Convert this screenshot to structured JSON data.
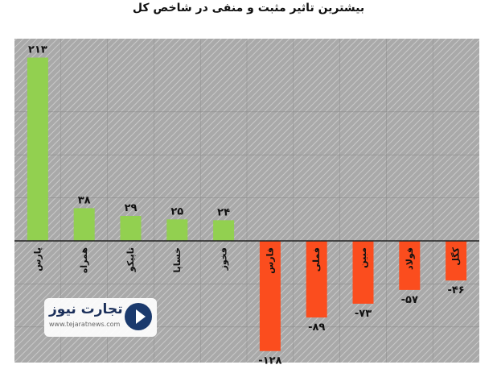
{
  "chart_data": {
    "type": "bar",
    "title": "بیشترین تاثیر مثبت و منفی در شاخص کل",
    "categories": [
      "پارس",
      "همراه",
      "تاپیکو",
      "خساپا",
      "فخوز",
      "فارس",
      "فملی",
      "مبین",
      "فولاد",
      "کگل"
    ],
    "values": [
      213,
      38,
      29,
      25,
      24,
      -128,
      -89,
      -73,
      -57,
      -46
    ],
    "value_labels": [
      "۲۱۳",
      "۳۸",
      "۲۹",
      "۲۵",
      "۲۴",
      "-۱۲۸",
      "-۸۹",
      "-۷۳",
      "-۵۷",
      "-۴۶"
    ],
    "ylim": [
      -140,
      235
    ],
    "xlabel": "",
    "ylabel": "",
    "grid": true,
    "colors": {
      "positive": "#92d050",
      "negative": "#fb4d1e",
      "background": "#a9a9a9",
      "hatch": "#c9c9c9"
    }
  },
  "logo": {
    "text": "تجارت نیوز",
    "sub": "www.tejaratnews.com",
    "icon": "play-arrow-icon"
  }
}
